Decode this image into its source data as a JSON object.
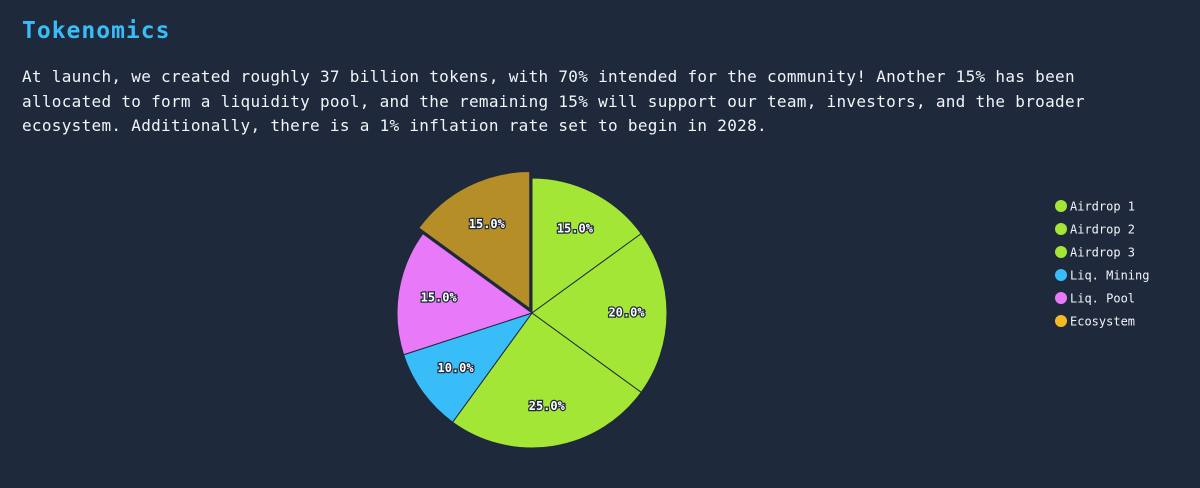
{
  "chart_data": {
    "type": "pie",
    "title": "Tokenomics",
    "subtitle": "At launch, we created roughly 37 billion tokens, with 70% intended for the community! Another 15% has been allocated to form a liquidity pool, and the remaining 15% will support our team, investors, and the broader ecosystem. Additionally, there is a 1% inflation rate set to begin in 2028.",
    "categories": [
      "Airdrop 1",
      "Airdrop 2",
      "Airdrop 3",
      "Liq. Mining",
      "Liq. Pool",
      "Ecosystem"
    ],
    "values": [
      15,
      20,
      25,
      10,
      15,
      15
    ],
    "value_labels": [
      "15.0%",
      "20.0%",
      "25.0%",
      "10.0%",
      "15.0%",
      "15.0%"
    ],
    "colors": [
      "#a3e635",
      "#a3e635",
      "#a3e635",
      "#38bdf8",
      "#e879f9",
      "#f5b921"
    ],
    "legend": "right"
  }
}
